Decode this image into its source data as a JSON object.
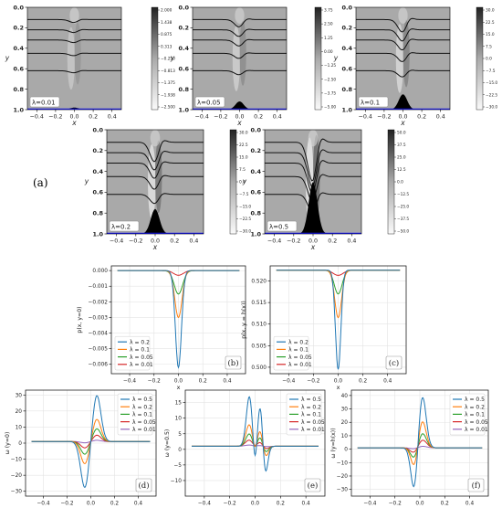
{
  "figure": {
    "group_label": "(a)"
  },
  "chart_data": [
    {
      "id": "a1",
      "type": "heatmap",
      "annotation": "λ=0.01",
      "xlabel": "x",
      "ylabel": "y",
      "xlim": [
        -0.5,
        0.5
      ],
      "ylim": [
        1.0,
        0.0
      ],
      "xticks": [
        "−0.4",
        "−0.2",
        "0.0",
        "0.2",
        "0.4"
      ],
      "yticks": [
        "0.0",
        "0.2",
        "0.4",
        "0.6",
        "0.8",
        "1.0"
      ],
      "colorbar_ticks": [
        "2.000",
        "1.438",
        "0.875",
        "0.313",
        "−0.250",
        "−0.813",
        "−1.375",
        "−1.938",
        "−2.500"
      ],
      "streamlines_y": [
        0.12,
        0.22,
        0.32,
        0.45,
        0.62
      ],
      "bump_height": 0.02
    },
    {
      "id": "a2",
      "type": "heatmap",
      "annotation": "λ=0.05",
      "xlabel": "x",
      "ylabel": "y",
      "xlim": [
        -0.5,
        0.5
      ],
      "ylim": [
        1.0,
        0.0
      ],
      "xticks": [
        "−0.4",
        "−0.2",
        "0.0",
        "0.2",
        "0.4"
      ],
      "yticks": [
        "0.0",
        "0.2",
        "0.4",
        "0.6",
        "0.8",
        "1.0"
      ],
      "colorbar_ticks": [
        "3.75",
        "2.50",
        "1.25",
        "0.00",
        "−1.25",
        "−2.50",
        "−3.75",
        "−5.00"
      ],
      "streamlines_y": [
        0.12,
        0.22,
        0.32,
        0.45,
        0.62
      ],
      "bump_height": 0.08
    },
    {
      "id": "a3",
      "type": "heatmap",
      "annotation": "λ=0.1",
      "xlabel": "x",
      "ylabel": "y",
      "xlim": [
        -0.5,
        0.5
      ],
      "ylim": [
        1.0,
        0.0
      ],
      "xticks": [
        "−0.4",
        "−0.2",
        "0.0",
        "0.2",
        "0.4"
      ],
      "yticks": [
        "0.0",
        "0.2",
        "0.4",
        "0.6",
        "0.8",
        "1.0"
      ],
      "colorbar_ticks": [
        "30.0",
        "22.5",
        "15.0",
        "7.5",
        "0.0",
        "−7.5",
        "−15.0",
        "−22.5",
        "−30.0"
      ],
      "streamlines_y": [
        0.12,
        0.22,
        0.32,
        0.45,
        0.62
      ],
      "bump_height": 0.15
    },
    {
      "id": "a4",
      "type": "heatmap",
      "annotation": "λ=0.2",
      "xlabel": "x",
      "ylabel": "y",
      "xlim": [
        -0.5,
        0.5
      ],
      "ylim": [
        1.0,
        0.0
      ],
      "xticks": [
        "−0.4",
        "−0.2",
        "0.0",
        "0.2",
        "0.4"
      ],
      "yticks": [
        "0.0",
        "0.2",
        "0.4",
        "0.6",
        "0.8",
        "1.0"
      ],
      "colorbar_ticks": [
        "30.0",
        "22.5",
        "15.0",
        "7.5",
        "0.0",
        "−7.5",
        "−15.0",
        "−22.5",
        "−30.0"
      ],
      "streamlines_y": [
        0.12,
        0.22,
        0.32,
        0.45,
        0.62
      ],
      "bump_height": 0.24
    },
    {
      "id": "a5",
      "type": "heatmap",
      "annotation": "λ=0.5",
      "xlabel": "x",
      "ylabel": "y",
      "xlim": [
        -0.5,
        0.5
      ],
      "ylim": [
        1.0,
        0.0
      ],
      "xticks": [
        "−0.4",
        "−0.2",
        "0.0",
        "0.2",
        "0.4"
      ],
      "yticks": [
        "0.0",
        "0.2",
        "0.4",
        "0.6",
        "0.8",
        "1.0"
      ],
      "colorbar_ticks": [
        "50.0",
        "37.5",
        "25.0",
        "12.5",
        "0.0",
        "−12.5",
        "−25.0",
        "−37.5",
        "−50.0"
      ],
      "streamlines_y": [
        0.12,
        0.22,
        0.32,
        0.45,
        0.62
      ],
      "bump_height": 0.5
    },
    {
      "id": "b",
      "type": "line",
      "panel_label": "(b)",
      "xlabel": "x",
      "ylabel": "p(x, y=0)",
      "xlim": [
        -0.55,
        0.55
      ],
      "ylim": [
        -0.0066,
        0.0003
      ],
      "xticks": [
        -0.4,
        -0.2,
        0.0,
        0.2,
        0.4
      ],
      "yticks": [
        0.0,
        -0.001,
        -0.002,
        -0.003,
        -0.004,
        -0.005,
        -0.006
      ],
      "ytick_labels": [
        "0.000",
        "−0.001",
        "−0.002",
        "−0.003",
        "−0.004",
        "−0.005",
        "−0.006"
      ],
      "legend": "lower-left",
      "grid": true,
      "x_range": [
        -0.5,
        0.5
      ],
      "series": [
        {
          "name": "λ = 0.2",
          "color": "#1f77b4",
          "shape": "gauss",
          "amp": -0.0062,
          "width": 0.025
        },
        {
          "name": "λ = 0.1",
          "color": "#ff7f0e",
          "shape": "gauss",
          "amp": -0.003,
          "width": 0.03
        },
        {
          "name": "λ = 0.05",
          "color": "#2ca02c",
          "shape": "gauss",
          "amp": -0.0015,
          "width": 0.035
        },
        {
          "name": "λ = 0.01",
          "color": "#d62728",
          "shape": "gauss",
          "amp": -0.0003,
          "width": 0.04
        }
      ]
    },
    {
      "id": "c",
      "type": "line",
      "panel_label": "(c)",
      "xlabel": "x",
      "ylabel": "p(x, y = h(x))",
      "xlim": [
        -0.55,
        0.55
      ],
      "ylim": [
        0.4985,
        0.5235
      ],
      "xticks": [
        -0.4,
        -0.2,
        0.0,
        0.2,
        0.4
      ],
      "yticks": [
        0.52,
        0.515,
        0.51,
        0.505,
        0.5
      ],
      "ytick_labels": [
        "0.520",
        "0.515",
        "0.510",
        "0.505",
        "0.500"
      ],
      "legend": "lower-left",
      "grid": true,
      "x_range": [
        -0.5,
        0.5
      ],
      "series": [
        {
          "name": "λ = 0.2",
          "color": "#1f77b4",
          "shape": "gauss",
          "base": 0.5225,
          "amp": -0.023,
          "width": 0.022
        },
        {
          "name": "λ = 0.1",
          "color": "#ff7f0e",
          "shape": "gauss",
          "base": 0.5225,
          "amp": -0.011,
          "width": 0.028
        },
        {
          "name": "λ = 0.05",
          "color": "#2ca02c",
          "shape": "gauss",
          "base": 0.5225,
          "amp": -0.0055,
          "width": 0.032
        },
        {
          "name": "λ = 0.01",
          "color": "#d62728",
          "shape": "gauss",
          "base": 0.5225,
          "amp": -0.0012,
          "width": 0.04
        }
      ]
    },
    {
      "id": "d",
      "type": "line",
      "panel_label": "(d)",
      "xlabel": "x",
      "ylabel": "ω (y=0)",
      "xlim": [
        -0.55,
        0.55
      ],
      "ylim": [
        -33,
        33
      ],
      "xticks": [
        -0.4,
        -0.2,
        0.0,
        0.2,
        0.4
      ],
      "yticks": [
        30,
        20,
        10,
        0,
        -10,
        -20,
        -30
      ],
      "ytick_labels": [
        "30",
        "20",
        "10",
        "0",
        "−10",
        "−20",
        "−30"
      ],
      "legend": "top-right",
      "grid": true,
      "x_range": [
        -0.5,
        0.5
      ],
      "series": [
        {
          "name": "λ = 0.5",
          "color": "#1f77b4",
          "shape": "dipole",
          "base": 1.0,
          "amp": 29,
          "width": 0.035
        },
        {
          "name": "λ = 0.2",
          "color": "#ff7f0e",
          "shape": "dipole",
          "base": 1.0,
          "amp": 14,
          "width": 0.035
        },
        {
          "name": "λ = 0.1",
          "color": "#2ca02c",
          "shape": "dipole",
          "base": 1.0,
          "amp": 8,
          "width": 0.035
        },
        {
          "name": "λ = 0.05",
          "color": "#d62728",
          "shape": "dipole",
          "base": 1.0,
          "amp": 4,
          "width": 0.035
        },
        {
          "name": "λ = 0.01",
          "color": "#9467bd",
          "shape": "dipole",
          "base": 1.0,
          "amp": 0.8,
          "width": 0.035
        }
      ]
    },
    {
      "id": "e",
      "type": "line",
      "panel_label": "(e)",
      "xlabel": "x",
      "ylabel": "ω (y=0.5)",
      "xlim": [
        -0.55,
        0.55
      ],
      "ylim": [
        -15,
        19
      ],
      "xticks": [
        -0.4,
        -0.2,
        0.0,
        0.2,
        0.4
      ],
      "yticks": [
        15,
        10,
        5,
        0,
        -5,
        -10
      ],
      "ytick_labels": [
        "15",
        "10",
        "5",
        "0",
        "−5",
        "−10"
      ],
      "legend": "top-right",
      "grid": true,
      "x_range": [
        -0.5,
        0.5
      ],
      "series": [
        {
          "name": "λ = 0.5",
          "color": "#1f77b4",
          "shape": "tri",
          "base": 1.0,
          "amp": 16,
          "width": 0.035
        },
        {
          "name": "λ = 0.2",
          "color": "#ff7f0e",
          "shape": "tri",
          "base": 1.0,
          "amp": 7,
          "width": 0.04
        },
        {
          "name": "λ = 0.1",
          "color": "#2ca02c",
          "shape": "tri",
          "base": 1.0,
          "amp": 4,
          "width": 0.04
        },
        {
          "name": "λ = 0.05",
          "color": "#d62728",
          "shape": "tri",
          "base": 1.0,
          "amp": 2,
          "width": 0.045
        },
        {
          "name": "λ = 0.01",
          "color": "#9467bd",
          "shape": "tri",
          "base": 1.0,
          "amp": 0.4,
          "width": 0.05
        }
      ]
    },
    {
      "id": "f",
      "type": "line",
      "panel_label": "(f)",
      "xlabel": "x",
      "ylabel": "ω (y=h(x))",
      "xlim": [
        -0.55,
        0.55
      ],
      "ylim": [
        -35,
        44
      ],
      "xticks": [
        -0.4,
        -0.2,
        0.0,
        0.2,
        0.4
      ],
      "yticks": [
        40,
        30,
        20,
        10,
        0,
        -10,
        -20,
        -30
      ],
      "ytick_labels": [
        "40",
        "30",
        "20",
        "10",
        "0",
        "−10",
        "−20",
        "−30"
      ],
      "legend": "top-right",
      "grid": true,
      "x_range": [
        -0.5,
        0.5
      ],
      "series": [
        {
          "name": "λ = 0.5",
          "color": "#1f77b4",
          "shape": "ricker",
          "base": 1.0,
          "amp": 39,
          "neg": 32,
          "width": 0.03
        },
        {
          "name": "λ = 0.2",
          "color": "#ff7f0e",
          "shape": "ricker",
          "base": 1.0,
          "amp": 20,
          "neg": 14,
          "width": 0.03
        },
        {
          "name": "λ = 0.1",
          "color": "#2ca02c",
          "shape": "ricker",
          "base": 1.0,
          "amp": 11,
          "neg": 8,
          "width": 0.032
        },
        {
          "name": "λ = 0.05",
          "color": "#d62728",
          "shape": "ricker",
          "base": 1.0,
          "amp": 6,
          "neg": 4,
          "width": 0.034
        },
        {
          "name": "λ = 0.01",
          "color": "#9467bd",
          "shape": "ricker",
          "base": 1.0,
          "amp": 1.2,
          "neg": 0.8,
          "width": 0.036
        }
      ]
    }
  ]
}
